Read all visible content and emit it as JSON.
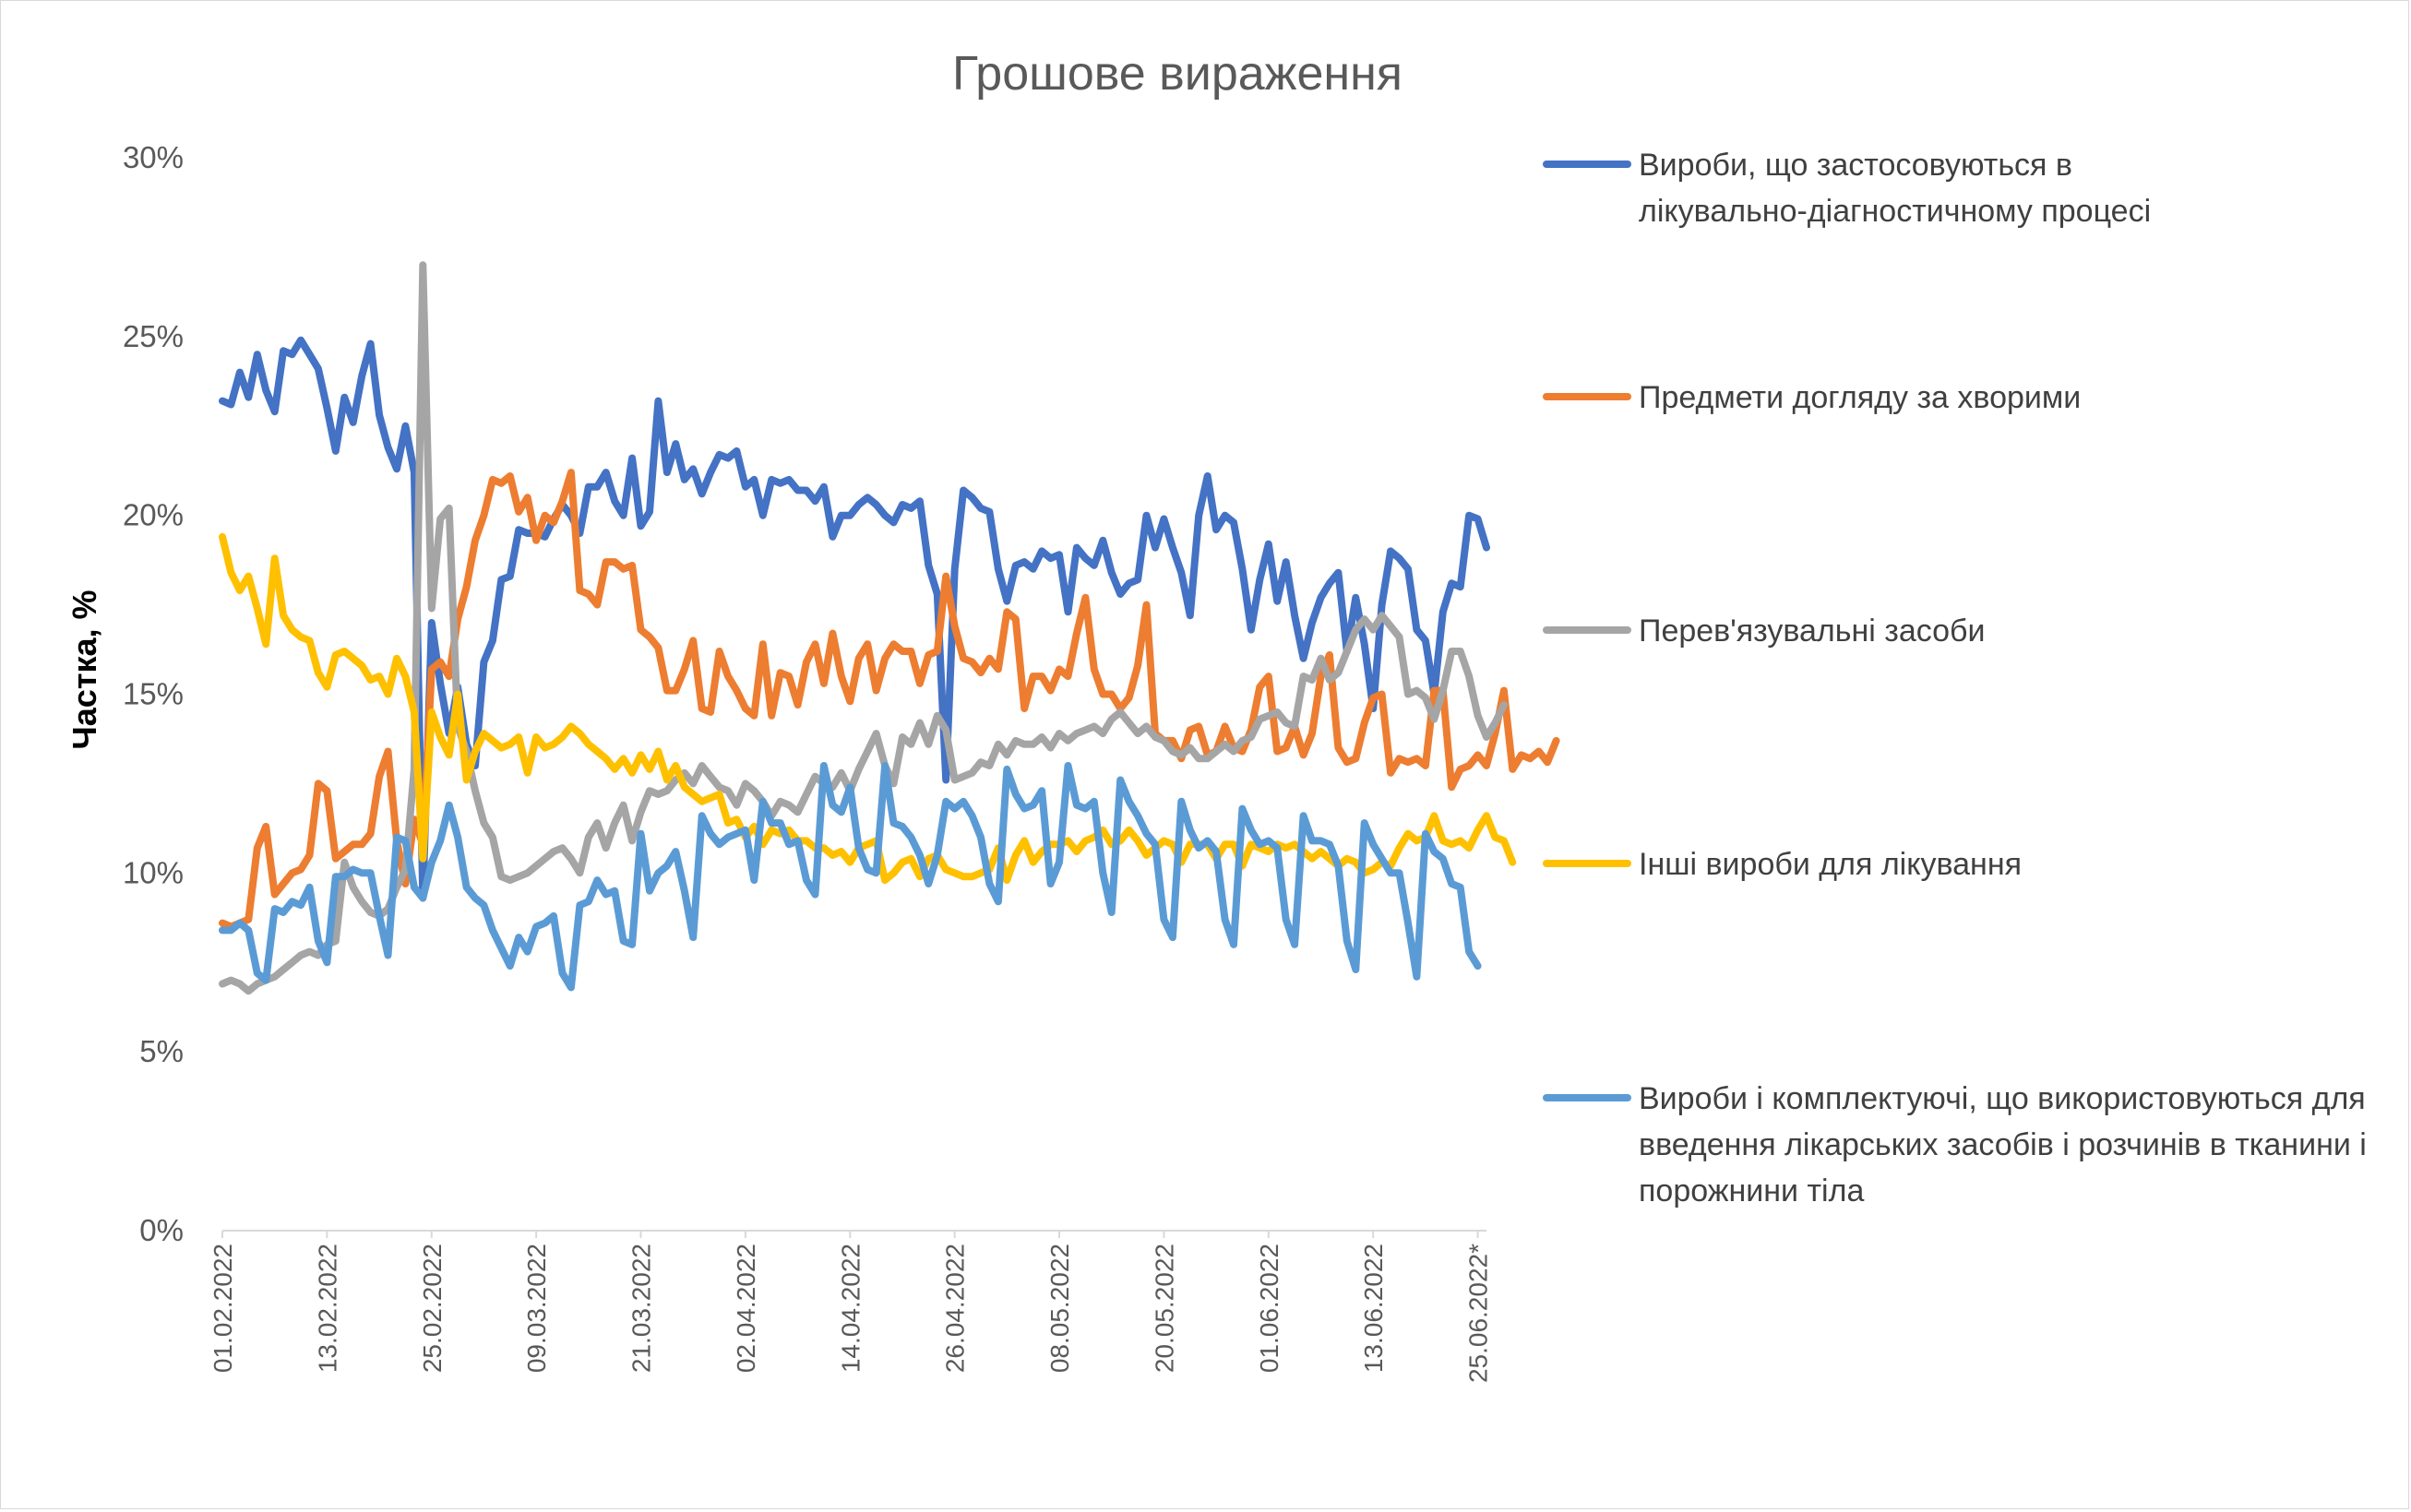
{
  "chart_data": {
    "type": "line",
    "title": "Грошове вираження",
    "xlabel": "",
    "ylabel": "Частка, %",
    "ylim": [
      0,
      30
    ],
    "yticks": [
      "0%",
      "5%",
      "10%",
      "15%",
      "20%",
      "25%",
      "30%"
    ],
    "grid": false,
    "legend_position": "right",
    "x_start": "01.02.2022",
    "x_end": "25.06.2022",
    "x_tick_labels": [
      "01.02.2022",
      "13.02.2022",
      "25.02.2022",
      "09.03.2022",
      "21.03.2022",
      "02.04.2022",
      "14.04.2022",
      "26.04.2022",
      "08.05.2022",
      "20.05.2022",
      "01.06.2022",
      "13.06.2022",
      "25.06.2022*"
    ],
    "series": [
      {
        "name": "Вироби, що застосовуються в лікувально-діагностичному процесі",
        "color": "#4472C4",
        "values": [
          23.2,
          23.1,
          24.0,
          23.3,
          24.5,
          23.5,
          22.9,
          24.6,
          24.5,
          24.9,
          24.5,
          24.1,
          23.0,
          21.8,
          23.3,
          22.6,
          23.9,
          24.8,
          22.8,
          21.9,
          21.3,
          22.5,
          21.2,
          9.3,
          17.0,
          15.3,
          13.9,
          15.2,
          13.6,
          13.0,
          15.9,
          16.5,
          18.2,
          18.3,
          19.6,
          19.5,
          19.5,
          19.4,
          19.9,
          20.3,
          20.0,
          19.5,
          20.8,
          20.8,
          21.2,
          20.4,
          20.0,
          21.6,
          19.7,
          20.1,
          23.2,
          21.2,
          22.0,
          21.0,
          21.3,
          20.6,
          21.2,
          21.7,
          21.6,
          21.8,
          20.8,
          21.0,
          20.0,
          21.0,
          20.9,
          21.0,
          20.7,
          20.7,
          20.4,
          20.8,
          19.4,
          20.0,
          20.0,
          20.3,
          20.5,
          20.3,
          20.0,
          19.8,
          20.3,
          20.2,
          20.4,
          18.6,
          17.8,
          12.6,
          18.5,
          20.7,
          20.5,
          20.2,
          20.1,
          18.5,
          17.6,
          18.6,
          18.7,
          18.5,
          19.0,
          18.8,
          18.9,
          17.3,
          19.1,
          18.8,
          18.6,
          19.3,
          18.4,
          17.8,
          18.1,
          18.2,
          20.0,
          19.1,
          19.9,
          19.1,
          18.4,
          17.2,
          20.0,
          21.1,
          19.6,
          20.0,
          19.8,
          18.5,
          16.8,
          18.2,
          19.2,
          17.6,
          18.7,
          17.2,
          16.0,
          17.0,
          17.7,
          18.1,
          18.4,
          16.2,
          17.7,
          16.4,
          14.6,
          17.5,
          19.0,
          18.8,
          18.5,
          16.8,
          16.5,
          15.0,
          17.3,
          18.1,
          18.0,
          20.0,
          19.9,
          19.1
        ]
      },
      {
        "name": "Предмети догляду за хворими",
        "color": "#ED7D31",
        "values": [
          8.6,
          8.5,
          8.6,
          8.7,
          10.7,
          11.3,
          9.4,
          9.7,
          10.0,
          10.1,
          10.5,
          12.5,
          12.3,
          10.4,
          10.6,
          10.8,
          10.8,
          11.1,
          12.7,
          13.4,
          10.9,
          9.7,
          11.5,
          10.8,
          15.7,
          15.9,
          15.5,
          17.1,
          18.0,
          19.3,
          20.0,
          21.0,
          20.9,
          21.1,
          20.1,
          20.5,
          19.3,
          20.0,
          19.8,
          20.4,
          21.2,
          17.9,
          17.8,
          17.5,
          18.7,
          18.7,
          18.5,
          18.6,
          16.8,
          16.6,
          16.3,
          15.1,
          15.1,
          15.7,
          16.5,
          14.6,
          14.5,
          16.2,
          15.5,
          15.1,
          14.6,
          14.4,
          16.4,
          14.4,
          15.6,
          15.5,
          14.7,
          15.9,
          16.4,
          15.3,
          16.7,
          15.5,
          14.8,
          16.0,
          16.4,
          15.1,
          16.0,
          16.4,
          16.2,
          16.2,
          15.3,
          16.1,
          16.2,
          18.3,
          16.9,
          16.0,
          15.9,
          15.6,
          16.0,
          15.7,
          17.3,
          17.1,
          14.6,
          15.5,
          15.5,
          15.1,
          15.7,
          15.5,
          16.7,
          17.7,
          15.7,
          15.0,
          15.0,
          14.6,
          14.9,
          15.8,
          17.5,
          13.9,
          13.7,
          13.7,
          13.2,
          14.0,
          14.1,
          13.3,
          13.4,
          14.1,
          13.5,
          13.4,
          14.0,
          15.2,
          15.5,
          13.4,
          13.5,
          14.1,
          13.3,
          13.9,
          15.5,
          16.1,
          13.5,
          13.1,
          13.2,
          14.2,
          14.9,
          15.0,
          12.8,
          13.2,
          13.1,
          13.2,
          13.0,
          15.1,
          15.1,
          12.4,
          12.9,
          13.0,
          13.3,
          13.0,
          13.9,
          15.1,
          12.9,
          13.3,
          13.2,
          13.4,
          13.1,
          13.7
        ]
      },
      {
        "name": "Перев'язувальні засоби",
        "color": "#A5A5A5",
        "values": [
          6.9,
          7.0,
          6.9,
          6.7,
          6.9,
          7.0,
          7.1,
          7.3,
          7.5,
          7.7,
          7.8,
          7.7,
          8.0,
          8.1,
          10.3,
          9.6,
          9.2,
          8.9,
          8.8,
          9.0,
          9.6,
          10.1,
          12.9,
          27.0,
          17.4,
          19.9,
          20.2,
          14.1,
          13.4,
          12.3,
          11.4,
          11.0,
          9.9,
          9.8,
          9.9,
          10.0,
          10.2,
          10.4,
          10.6,
          10.7,
          10.4,
          10.0,
          11.0,
          11.4,
          10.7,
          11.4,
          11.9,
          10.9,
          11.7,
          12.3,
          12.2,
          12.3,
          12.6,
          12.8,
          12.5,
          13.0,
          12.7,
          12.4,
          12.3,
          11.9,
          12.5,
          12.3,
          12.0,
          11.6,
          12.0,
          11.9,
          11.7,
          12.2,
          12.7,
          12.5,
          12.4,
          12.8,
          12.3,
          12.9,
          13.4,
          13.9,
          13.0,
          12.5,
          13.8,
          13.6,
          14.2,
          13.6,
          14.4,
          14.0,
          12.6,
          12.7,
          12.8,
          13.1,
          13.0,
          13.6,
          13.3,
          13.7,
          13.6,
          13.6,
          13.8,
          13.5,
          13.9,
          13.7,
          13.9,
          14.0,
          14.1,
          13.9,
          14.3,
          14.5,
          14.2,
          13.9,
          14.1,
          13.8,
          13.7,
          13.4,
          13.3,
          13.5,
          13.2,
          13.2,
          13.4,
          13.6,
          13.4,
          13.7,
          13.8,
          14.3,
          14.4,
          14.5,
          14.2,
          14.1,
          15.5,
          15.4,
          16.0,
          15.4,
          15.6,
          16.2,
          16.8,
          17.1,
          16.8,
          17.2,
          16.9,
          16.6,
          15.0,
          15.1,
          14.9,
          14.3,
          15.1,
          16.2,
          16.2,
          15.5,
          14.4,
          13.8,
          14.2,
          14.7
        ]
      },
      {
        "name": "Інші вироби для лікування",
        "color": "#FFC000",
        "values": [
          19.4,
          18.4,
          17.9,
          18.3,
          17.4,
          16.4,
          18.8,
          17.2,
          16.8,
          16.6,
          16.5,
          15.6,
          15.2,
          16.1,
          16.2,
          16.0,
          15.8,
          15.4,
          15.5,
          15.0,
          16.0,
          15.5,
          14.5,
          10.4,
          14.5,
          13.8,
          13.3,
          15.0,
          12.6,
          13.4,
          13.9,
          13.7,
          13.5,
          13.6,
          13.8,
          12.8,
          13.8,
          13.5,
          13.6,
          13.8,
          14.1,
          13.9,
          13.6,
          13.4,
          13.2,
          12.9,
          13.2,
          12.8,
          13.3,
          12.9,
          13.4,
          12.6,
          13.0,
          12.4,
          12.2,
          12.0,
          12.1,
          12.2,
          11.4,
          11.5,
          11.0,
          11.3,
          10.8,
          11.2,
          11.1,
          11.2,
          10.9,
          10.9,
          10.7,
          10.7,
          10.5,
          10.6,
          10.3,
          10.7,
          10.8,
          10.9,
          9.8,
          10.0,
          10.3,
          10.4,
          9.9,
          10.4,
          10.5,
          10.1,
          10.0,
          9.9,
          9.9,
          10.0,
          10.1,
          10.7,
          9.8,
          10.5,
          10.9,
          10.3,
          10.6,
          10.8,
          10.8,
          10.9,
          10.6,
          10.9,
          11.0,
          11.2,
          10.8,
          10.9,
          11.2,
          10.9,
          10.5,
          10.7,
          10.9,
          10.8,
          10.3,
          10.8,
          10.8,
          10.8,
          10.4,
          10.8,
          10.8,
          10.2,
          10.8,
          10.7,
          10.6,
          10.8,
          10.7,
          10.8,
          10.6,
          10.4,
          10.6,
          10.4,
          10.2,
          10.4,
          10.3,
          10.0,
          10.1,
          10.3,
          10.2,
          10.7,
          11.1,
          10.9,
          11.0,
          11.6,
          10.9,
          10.8,
          10.9,
          10.7,
          11.2,
          11.6,
          11.0,
          10.9,
          10.3
        ]
      },
      {
        "name": "Вироби і комплектуючі, що використовуються для введення лікарських засобів і розчинів в тканини і порожнини тіла",
        "color": "#5B9BD5",
        "values": [
          8.4,
          8.4,
          8.6,
          8.4,
          7.2,
          7.0,
          9.0,
          8.9,
          9.2,
          9.1,
          9.6,
          8.1,
          7.5,
          9.9,
          9.9,
          10.1,
          10.0,
          10.0,
          8.8,
          7.7,
          11.0,
          10.9,
          9.6,
          9.3,
          10.3,
          10.9,
          11.9,
          11.0,
          9.6,
          9.3,
          9.1,
          8.4,
          7.9,
          7.4,
          8.2,
          7.8,
          8.5,
          8.6,
          8.8,
          7.2,
          6.8,
          9.1,
          9.2,
          9.8,
          9.4,
          9.5,
          8.1,
          8.0,
          11.1,
          9.5,
          10.0,
          10.2,
          10.6,
          9.5,
          8.2,
          11.6,
          11.1,
          10.8,
          11.0,
          11.1,
          11.2,
          9.8,
          12.0,
          11.4,
          11.4,
          10.8,
          10.9,
          9.8,
          9.4,
          13.0,
          11.9,
          11.7,
          12.4,
          10.7,
          10.1,
          10.0,
          13.0,
          11.4,
          11.3,
          11.0,
          10.5,
          9.7,
          10.5,
          12.0,
          11.8,
          12.0,
          11.6,
          11.0,
          9.7,
          9.2,
          12.9,
          12.2,
          11.8,
          11.9,
          12.3,
          9.7,
          10.3,
          13.0,
          11.9,
          11.8,
          12.0,
          10.0,
          8.9,
          12.6,
          12.0,
          11.6,
          11.1,
          10.8,
          8.7,
          8.2,
          12.0,
          11.2,
          10.7,
          10.9,
          10.6,
          8.7,
          8.0,
          11.8,
          11.2,
          10.8,
          10.9,
          10.7,
          8.7,
          8.0,
          11.6,
          10.9,
          10.9,
          10.8,
          10.2,
          8.1,
          7.3,
          11.4,
          10.8,
          10.4,
          10.0,
          10.0,
          8.6,
          7.1,
          11.1,
          10.6,
          10.4,
          9.7,
          9.6,
          7.8,
          7.4
        ]
      }
    ]
  }
}
